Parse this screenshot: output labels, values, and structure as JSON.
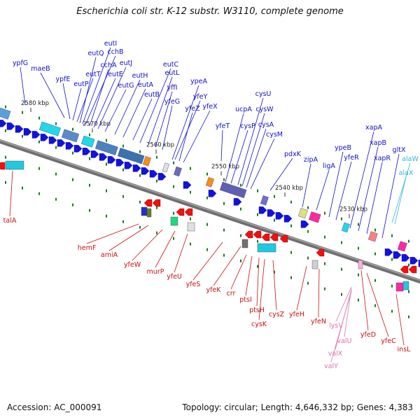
{
  "title": "Escherichia coli str. K-12 substr. W3110, complete genome",
  "accession": "Accession: AC_000091",
  "summary": "Topology: circular; Length: 4,646,332 bp; Genes: 4,383",
  "colors": {
    "forward_label": "#1010c8",
    "reverse_label": "#c81010",
    "trna_label": "#e070b0",
    "rrna_label": "#30b8d8",
    "backbone": "#707070"
  },
  "scale_ticks": [
    "2580 kbp",
    "2570 kbp",
    "2560 kbp",
    "2550 kbp",
    "2540 kbp",
    "2530 kbp"
  ],
  "forward_genes": [
    "ypfG",
    "maeB",
    "ypfE",
    "eutP",
    "eutT",
    "eutQ",
    "eutI",
    "cchB",
    "cchA",
    "eutE",
    "eutJ",
    "eutG",
    "eutH",
    "eutA",
    "eutB",
    "eutC",
    "eutL",
    "yffI",
    "yfeG",
    "ypeA",
    "yfeY",
    "yfeZ",
    "yfeX",
    "yfeT",
    "ucpA",
    "cysP",
    "cysU",
    "cysW",
    "cysA",
    "cysM",
    "pdxK",
    "zipA",
    "ligA",
    "ypeB",
    "yfeR",
    "xapA",
    "xapB",
    "xapR",
    "gltX"
  ],
  "rrna_genes": [
    "alaW",
    "alaX"
  ],
  "reverse_genes": [
    "talA",
    "hemF",
    "amiA",
    "yfeW",
    "murP",
    "yfeU",
    "yfeS",
    "yfeK",
    "crr",
    "ptsI",
    "ptsH",
    "cysK",
    "cysZ",
    "yfeH",
    "yfeN",
    "yfeD",
    "yfeC",
    "insL"
  ],
  "trna_genes": [
    "lysV",
    "valU",
    "valX",
    "valY"
  ]
}
